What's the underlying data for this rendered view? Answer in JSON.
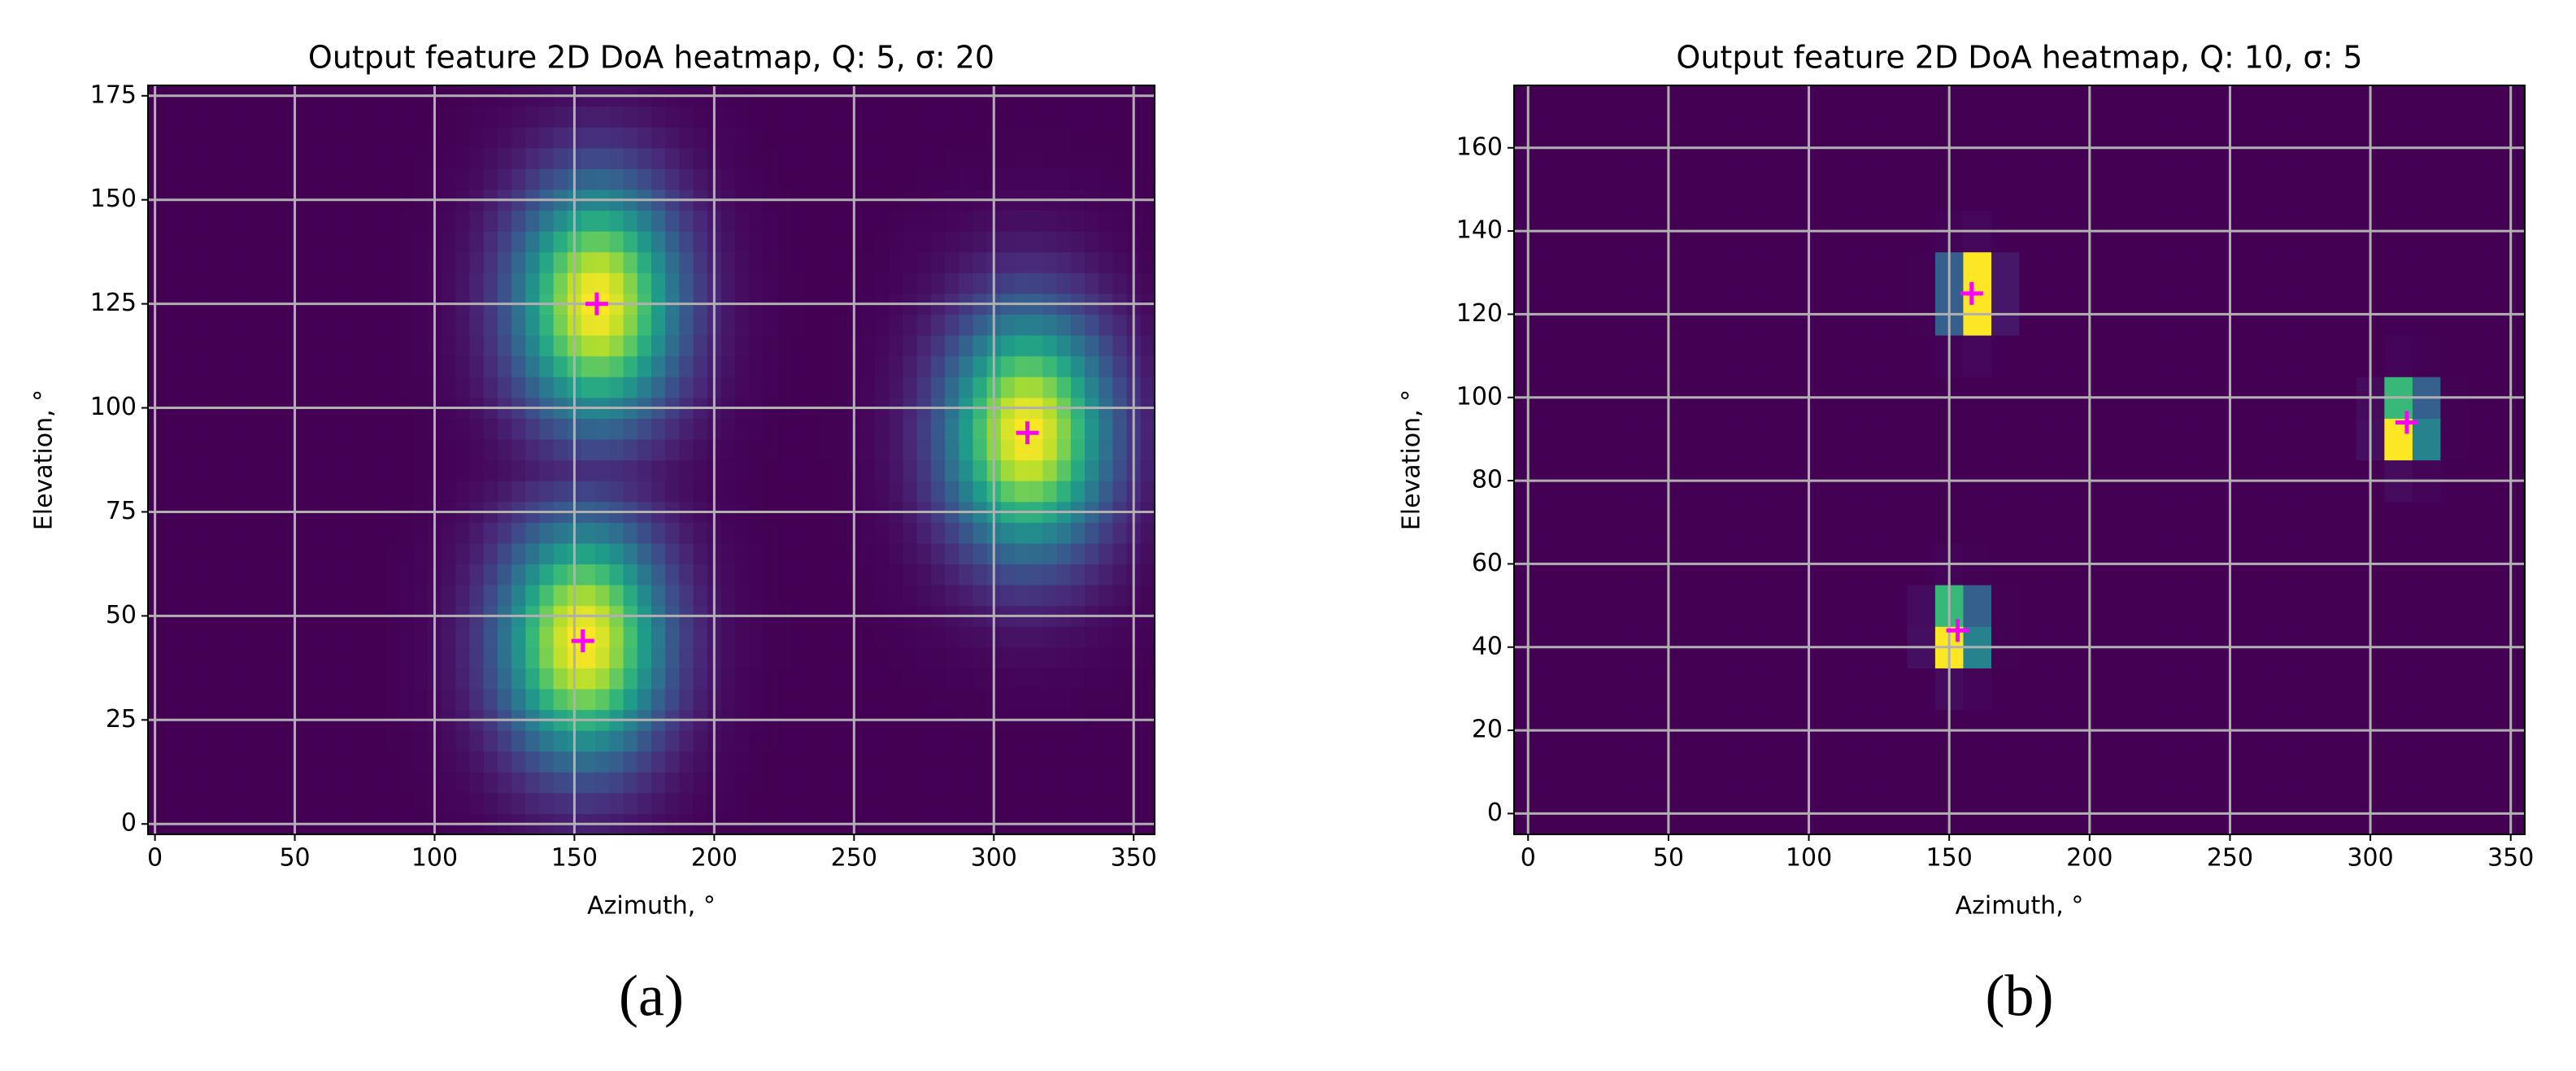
{
  "chart_data": [
    {
      "type": "heatmap",
      "title": "Output feature 2D DoA heatmap, Q: 5, σ: 20",
      "caption": "(a)",
      "x_label": "Azimuth, °",
      "y_label": "Elevation, °",
      "colormap": "viridis",
      "resolution": 5,
      "sigma": 20,
      "sources": [
        {
          "azimuth": 158,
          "elevation": 125
        },
        {
          "azimuth": 312,
          "elevation": 94
        },
        {
          "azimuth": 153,
          "elevation": 44
        }
      ],
      "marker_color": "#ff00ff",
      "xlim": [
        -2.5,
        357.5
      ],
      "ylim": [
        -2.5,
        177.5
      ],
      "xticks": [
        0,
        50,
        100,
        150,
        200,
        250,
        300,
        350
      ],
      "yticks": [
        0,
        25,
        50,
        75,
        100,
        125,
        150,
        175
      ],
      "grid": true
    },
    {
      "type": "heatmap",
      "title": "Output feature 2D DoA heatmap, Q: 10, σ: 5",
      "caption": "(b)",
      "x_label": "Azimuth, °",
      "y_label": "Elevation, °",
      "colormap": "viridis",
      "resolution": 10,
      "sigma": 5,
      "sources": [
        {
          "azimuth": 158,
          "elevation": 125
        },
        {
          "azimuth": 313,
          "elevation": 94
        },
        {
          "azimuth": 153,
          "elevation": 44
        }
      ],
      "marker_color": "#ff00ff",
      "xlim": [
        -5,
        355
      ],
      "ylim": [
        -5,
        175
      ],
      "xticks": [
        0,
        50,
        100,
        150,
        200,
        250,
        300,
        350
      ],
      "yticks": [
        0,
        20,
        40,
        60,
        80,
        100,
        120,
        140,
        160
      ],
      "grid": true
    }
  ]
}
